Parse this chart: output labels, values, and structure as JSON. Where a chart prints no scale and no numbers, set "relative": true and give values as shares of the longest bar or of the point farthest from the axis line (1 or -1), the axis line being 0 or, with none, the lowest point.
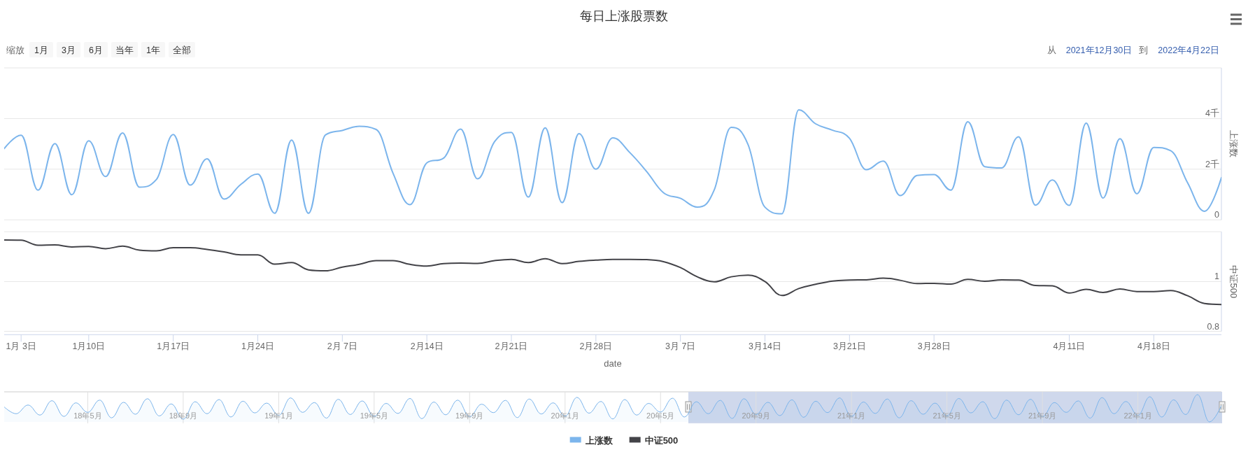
{
  "chart_data": [
    {
      "type": "line",
      "title": "每日上涨股票数",
      "annotations": [
        "缩放",
        "1月",
        "3月",
        "6月",
        "当年",
        "1年",
        "全部",
        "从",
        "2021年12月30日",
        "到",
        "2022年4月22日"
      ],
      "ylabel": "上涨数",
      "categories": [
        null,
        null,
        null,
        null,
        null,
        null,
        null,
        null,
        null,
        null,
        null,
        null,
        null,
        null,
        null,
        null,
        null,
        null,
        null,
        null,
        null,
        null,
        null,
        null,
        null,
        null,
        null,
        null,
        null,
        null,
        null,
        null,
        null,
        null,
        null,
        null,
        null,
        null,
        null,
        null,
        null,
        null,
        null,
        null,
        null,
        null,
        null,
        null,
        null,
        null,
        null,
        null,
        null,
        null,
        null,
        null,
        null,
        null,
        null,
        null,
        null,
        null,
        null,
        null,
        null,
        null,
        null,
        null,
        null,
        null,
        null,
        null,
        null
      ],
      "series": [
        {
          "name": "上涨数",
          "color": "#7cb5ec",
          "values": [
            2.81,
            3.34,
            1.17,
            3.01,
            0.99,
            3.12,
            1.71,
            3.43,
            1.29,
            1.59,
            3.37,
            1.37,
            2.41,
            0.82,
            1.4,
            1.81,
            0.26,
            3.15,
            0.26,
            3.35,
            3.53,
            3.69,
            3.57,
            1.84,
            0.6,
            2.25,
            2.44,
            3.58,
            1.62,
            3.08,
            3.45,
            0.9,
            3.63,
            0.68,
            3.4,
            2.0,
            3.24,
            2.66,
            1.91,
            1.07,
            0.85,
            0.5,
            1.18,
            3.65,
            2.97,
            0.5,
            0.24,
            4.34,
            3.79,
            3.54,
            3.22,
            1.98,
            2.32,
            0.96,
            1.75,
            1.79,
            1.17,
            3.87,
            2.1,
            2.05,
            3.28,
            0.58,
            1.57,
            0.57,
            3.82,
            0.86,
            3.2,
            1.03,
            2.86,
            2.73,
            1.46,
            0.34,
            1.67
          ]
        }
      ],
      "ylim": [
        0,
        6
      ],
      "yticks": [
        0,
        {
          "value": 2,
          "label": "2千"
        },
        {
          "value": 4,
          "label": "4千"
        },
        {
          "value": 6,
          "label": null
        }
      ],
      "grid": "y",
      "legend": "bottom",
      "tick_labels": "y"
    },
    {
      "type": "line",
      "ylabel": "中证500",
      "xlabel": "date",
      "categories": [
        null,
        "1月 3日",
        null,
        null,
        null,
        "1月10日",
        null,
        null,
        null,
        null,
        "1月17日",
        null,
        null,
        null,
        null,
        "1月24日",
        null,
        null,
        null,
        null,
        "2月 7日",
        null,
        null,
        null,
        null,
        "2月14日",
        null,
        null,
        null,
        null,
        "2月21日",
        null,
        null,
        null,
        null,
        "2月28日",
        null,
        null,
        null,
        null,
        "3月 7日",
        null,
        null,
        null,
        null,
        "3月14日",
        null,
        null,
        null,
        null,
        "3月21日",
        null,
        null,
        null,
        null,
        "3月28日",
        null,
        null,
        null,
        null,
        null,
        null,
        null,
        "4月11日",
        null,
        null,
        null,
        null,
        "4月18日",
        null,
        null,
        null,
        null
      ],
      "series": [
        {
          "name": "中证500",
          "color": "#434348",
          "values": [
            1.167,
            1.166,
            1.146,
            1.147,
            1.139,
            1.141,
            1.132,
            1.142,
            1.126,
            1.123,
            1.136,
            1.136,
            1.129,
            1.119,
            1.107,
            1.107,
            1.07,
            1.076,
            1.047,
            1.043,
            1.058,
            1.069,
            1.084,
            1.084,
            1.069,
            1.062,
            1.072,
            1.074,
            1.073,
            1.084,
            1.089,
            1.076,
            1.092,
            1.072,
            1.081,
            1.086,
            1.089,
            1.089,
            1.088,
            1.08,
            1.056,
            1.019,
            0.999,
            1.019,
            1.026,
            1.0,
            0.944,
            0.972,
            0.989,
            1.002,
            1.006,
            1.007,
            1.014,
            1.005,
            0.992,
            0.993,
            0.99,
            1.009,
            1.001,
            1.007,
            1.006,
            0.984,
            0.983,
            0.954,
            0.969,
            0.956,
            0.97,
            0.96,
            0.96,
            0.964,
            0.943,
            0.912,
            0.908
          ]
        }
      ],
      "ylim": [
        0.8,
        1.2
      ],
      "yticks": [
        0.8,
        1,
        {
          "value": 1.2,
          "label": null
        }
      ],
      "grid": "y",
      "legend": "bottom"
    },
    {
      "type": "area",
      "relative": true,
      "categories": [
        null,
        null,
        null,
        null,
        null,
        null,
        null,
        "18年5月",
        null,
        null,
        null,
        null,
        null,
        null,
        null,
        "18年9月",
        null,
        null,
        null,
        null,
        null,
        null,
        null,
        "19年1月",
        null,
        null,
        null,
        null,
        null,
        null,
        null,
        "19年5月",
        null,
        null,
        null,
        null,
        null,
        null,
        null,
        "19年9月",
        null,
        null,
        null,
        null,
        null,
        null,
        null,
        "20年1月",
        null,
        null,
        null,
        null,
        null,
        null,
        null,
        "20年5月",
        null,
        null,
        null,
        null,
        null,
        null,
        null,
        "20年9月",
        null,
        null,
        null,
        null,
        null,
        null,
        null,
        "21年1月",
        null,
        null,
        null,
        null,
        null,
        null,
        null,
        "21年5月",
        null,
        null,
        null,
        null,
        null,
        null,
        null,
        "21年9月",
        null,
        null,
        null,
        null,
        null,
        null,
        null,
        "22年1月",
        null,
        null,
        null,
        null,
        null,
        null,
        null
      ],
      "series": [
        {
          "color": "#7cb5ec",
          "values": [
            0.55,
            0.3,
            0.62,
            0.25,
            0.78,
            0.2,
            0.7,
            0.35,
            0.8,
            0.15,
            0.72,
            0.28,
            0.85,
            0.22,
            0.66,
            0.1,
            0.74,
            0.3,
            0.82,
            0.18,
            0.76,
            0.33,
            0.69,
            0.24,
            0.88,
            0.35,
            0.71,
            0.14,
            0.83,
            0.27,
            0.77,
            0.2,
            0.68,
            0.31,
            0.86,
            0.12,
            0.73,
            0.26,
            0.8,
            0.19,
            0.65,
            0.34,
            0.79,
            0.16,
            0.84,
            0.29,
            0.7,
            0.21,
            0.9,
            0.32,
            0.75,
            0.11,
            0.82,
            0.25,
            0.68,
            0.36,
            0.87,
            0.18,
            0.74,
            0.3,
            0.79,
            0.13,
            0.85,
            0.27,
            0.72,
            0.23,
            0.81,
            0.17,
            0.76,
            0.34,
            0.88,
            0.2,
            0.73,
            0.31,
            0.84,
            0.15,
            0.78,
            0.28,
            0.69,
            0.22,
            0.86,
            0.33,
            0.74,
            0.12,
            0.8,
            0.26,
            0.83,
            0.19,
            0.71,
            0.35,
            0.77,
            0.14,
            0.89,
            0.3,
            0.75,
            0.24,
            0.92,
            0.18,
            0.81,
            0.27,
            1,
            0,
            0.6
          ]
        }
      ],
      "grid": "x"
    }
  ]
}
